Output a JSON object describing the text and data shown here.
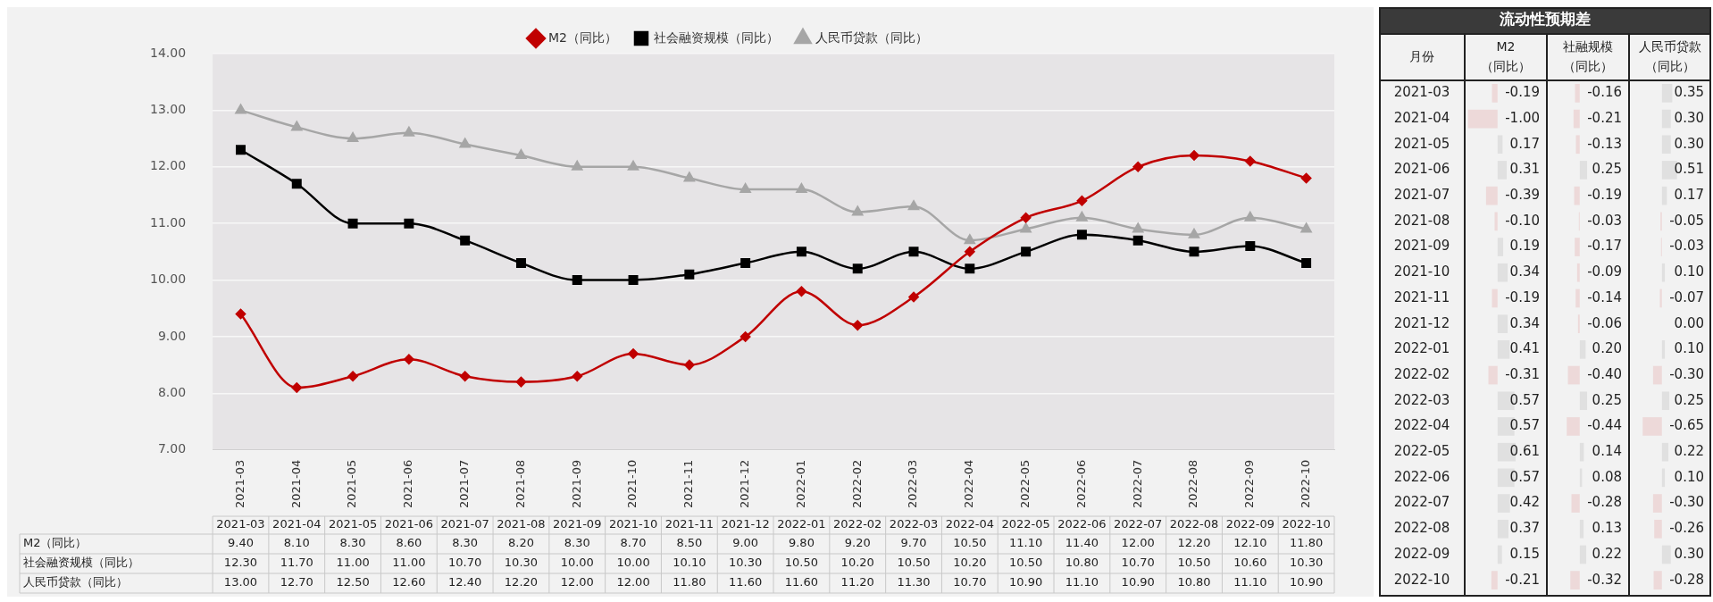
{
  "chart_data": [
    {
      "type": "line",
      "categories": [
        "2021-03",
        "2021-04",
        "2021-05",
        "2021-06",
        "2021-07",
        "2021-08",
        "2021-09",
        "2021-10",
        "2021-11",
        "2021-12",
        "2022-01",
        "2022-02",
        "2022-03",
        "2022-04",
        "2022-05",
        "2022-06",
        "2022-07",
        "2022-08",
        "2022-09",
        "2022-10"
      ],
      "series": [
        {
          "name": "M2（同比）",
          "color": "#c00000",
          "marker": "diamond",
          "values": [
            9.4,
            8.1,
            8.3,
            8.6,
            8.3,
            8.2,
            8.3,
            8.7,
            8.5,
            9.0,
            9.8,
            9.2,
            9.7,
            10.5,
            11.1,
            11.4,
            12.0,
            12.2,
            12.1,
            11.8
          ],
          "value_labels": [
            "9.40",
            "8.10",
            "8.30",
            "8.60",
            "8.30",
            "8.20",
            "8.30",
            "8.70",
            "8.50",
            "9.00",
            "9.80",
            "9.20",
            "9.70",
            "10.50",
            "11.10",
            "11.40",
            "12.00",
            "12.20",
            "12.10",
            "11.80"
          ]
        },
        {
          "name": "社会融资规模（同比）",
          "color": "#000000",
          "marker": "square",
          "values": [
            12.3,
            11.7,
            11.0,
            11.0,
            10.7,
            10.3,
            10.0,
            10.0,
            10.1,
            10.3,
            10.5,
            10.2,
            10.5,
            10.2,
            10.5,
            10.8,
            10.7,
            10.5,
            10.6,
            10.3
          ],
          "value_labels": [
            "12.30",
            "11.70",
            "11.00",
            "11.00",
            "10.70",
            "10.30",
            "10.00",
            "10.00",
            "10.10",
            "10.30",
            "10.50",
            "10.20",
            "10.50",
            "10.20",
            "10.50",
            "10.80",
            "10.70",
            "10.50",
            "10.60",
            "10.30"
          ]
        },
        {
          "name": "人民币贷款（同比）",
          "color": "#a6a6a6",
          "marker": "triangle",
          "values": [
            13.0,
            12.7,
            12.5,
            12.6,
            12.4,
            12.2,
            12.0,
            12.0,
            11.8,
            11.6,
            11.6,
            11.2,
            11.3,
            10.7,
            10.9,
            11.1,
            10.9,
            10.8,
            11.1,
            10.9
          ],
          "value_labels": [
            "13.00",
            "12.70",
            "12.50",
            "12.60",
            "12.40",
            "12.20",
            "12.00",
            "12.00",
            "11.80",
            "11.60",
            "11.60",
            "11.20",
            "11.30",
            "10.70",
            "10.90",
            "11.10",
            "10.90",
            "10.80",
            "11.10",
            "10.90"
          ]
        }
      ],
      "ylim": [
        7,
        14
      ],
      "yticks": [
        {
          "value": 7,
          "label": "7.00"
        },
        {
          "value": 8,
          "label": "8.00"
        },
        {
          "value": 9,
          "label": "9.00"
        },
        {
          "value": 10,
          "label": "10.00"
        },
        {
          "value": 11,
          "label": "11.00"
        },
        {
          "value": 12,
          "label": "12.00"
        },
        {
          "value": 13,
          "label": "13.00"
        },
        {
          "value": 14,
          "label": "14.00"
        }
      ],
      "grid": "y",
      "legend": "top"
    },
    {
      "type": "heatmap",
      "title": "流动性预期差",
      "ylabel": "月份",
      "categories": [
        "M2（同比）",
        "社融规模（同比）",
        "人民币贷款（同比）"
      ],
      "y_categories": [
        "2021-03",
        "2021-04",
        "2021-05",
        "2021-06",
        "2021-07",
        "2021-08",
        "2021-09",
        "2021-10",
        "2021-11",
        "2021-12",
        "2022-01",
        "2022-02",
        "2022-03",
        "2022-04",
        "2022-05",
        "2022-06",
        "2022-07",
        "2022-08",
        "2022-09",
        "2022-10"
      ],
      "cells": [
        [
          -0.19,
          -0.16,
          0.35
        ],
        [
          -1.0,
          -0.21,
          0.3
        ],
        [
          0.17,
          -0.13,
          0.3
        ],
        [
          0.31,
          0.25,
          0.51
        ],
        [
          -0.39,
          -0.19,
          0.17
        ],
        [
          -0.1,
          -0.03,
          -0.05
        ],
        [
          0.19,
          -0.17,
          -0.03
        ],
        [
          0.34,
          -0.09,
          0.1
        ],
        [
          -0.19,
          -0.14,
          -0.07
        ],
        [
          0.34,
          -0.06,
          0.0
        ],
        [
          0.41,
          0.2,
          0.1
        ],
        [
          -0.31,
          -0.4,
          -0.3
        ],
        [
          0.57,
          0.25,
          0.25
        ],
        [
          0.57,
          -0.44,
          -0.65
        ],
        [
          0.61,
          0.14,
          0.22
        ],
        [
          0.57,
          0.08,
          0.1
        ],
        [
          0.42,
          -0.28,
          -0.3
        ],
        [
          0.37,
          0.13,
          -0.26
        ],
        [
          0.15,
          0.22,
          0.3
        ],
        [
          -0.21,
          -0.32,
          -0.28
        ]
      ],
      "cell_labels": [
        [
          "-0.19",
          "-0.16",
          "0.35"
        ],
        [
          "-1.00",
          "-0.21",
          "0.30"
        ],
        [
          "0.17",
          "-0.13",
          "0.30"
        ],
        [
          "0.31",
          "0.25",
          "0.51"
        ],
        [
          "-0.39",
          "-0.19",
          "0.17"
        ],
        [
          "-0.10",
          "-0.03",
          "-0.05"
        ],
        [
          "0.19",
          "-0.17",
          "-0.03"
        ],
        [
          "0.34",
          "-0.09",
          "0.10"
        ],
        [
          "-0.19",
          "-0.14",
          "-0.07"
        ],
        [
          "0.34",
          "-0.06",
          "0.00"
        ],
        [
          "0.41",
          "0.20",
          "0.10"
        ],
        [
          "-0.31",
          "-0.40",
          "-0.30"
        ],
        [
          "0.57",
          "0.25",
          "0.25"
        ],
        [
          "0.57",
          "-0.44",
          "-0.65"
        ],
        [
          "0.61",
          "0.14",
          "0.22"
        ],
        [
          "0.57",
          "0.08",
          "0.10"
        ],
        [
          "0.42",
          "-0.28",
          "-0.30"
        ],
        [
          "0.37",
          "0.13",
          "-0.26"
        ],
        [
          "0.15",
          "0.22",
          "0.30"
        ],
        [
          "-0.21",
          "-0.32",
          "-0.28"
        ]
      ]
    }
  ]
}
